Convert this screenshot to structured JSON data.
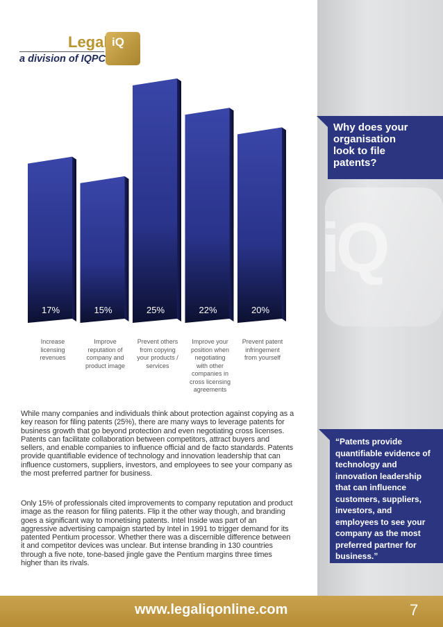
{
  "logo": {
    "brand": "Legal",
    "mark": "iQ",
    "tagline": "a division of IQPC"
  },
  "chart_data": {
    "type": "bar",
    "categories": [
      "Increase licensing revenues",
      "Improve reputation of company and product image",
      "Prevent others from copying your products / services",
      "Improve your position when negotiating with other companies in cross licensing agreements",
      "Prevent patent infringement from yourself"
    ],
    "category_lines": [
      [
        "Increase",
        "licensing",
        "revenues"
      ],
      [
        "Improve",
        "reputation of",
        "company and",
        "product image"
      ],
      [
        "Prevent others",
        "from copying",
        "your products /",
        "services"
      ],
      [
        "Improve your",
        "position when",
        "negotiating",
        "with other",
        "companies in",
        "cross licensing",
        "agreements"
      ],
      [
        "Prevent patent",
        "infringement",
        "from yourself"
      ]
    ],
    "values": [
      17,
      15,
      25,
      22,
      20
    ],
    "value_labels": [
      "17%",
      "15%",
      "25%",
      "22%",
      "20%"
    ],
    "ylim": [
      0,
      25
    ],
    "grid": false
  },
  "sidebar": {
    "watermark": "iQ",
    "callout_question": "Why does your organisation look to file patents?",
    "callout_quote": "“Patents provide quantifiable evidence of technology and innovation leadership that can influence customers, suppliers, investors, and employees to see your company as the most preferred partner for business.”"
  },
  "body": {
    "paragraph_1": "While many companies and individuals think about protection against copying as a key reason for filing patents (25%), there are many ways to leverage patents for business growth that go beyond protection and even negotiating cross licenses. Patents can facilitate collaboration between competitors, attract buyers and sellers, and enable companies to influence official and de facto standards. Patents provide quantifiable evidence of technology and innovation leadership that can influence customers, suppliers, investors, and employees to see your company as the most preferred partner for business.",
    "paragraph_2": "Only 15% of professionals cited improvements to company reputation and product image as the reason for filing patents. Flip it the other way though, and branding goes a significant way to monetising patents. Intel Inside was part of an aggressive advertising campaign started by Intel in 1991 to trigger demand for its patented Pentium processor. Whether there was a discernible difference between it and competitor devices was unclear. But intense branding in 130 countries through a five note, tone-based jingle gave the Pentium margins three times higher than its rivals."
  },
  "footer": {
    "url": "www.legaliqonline.com",
    "page_number": "7"
  },
  "colors": {
    "bar": "#2b3590",
    "callout": "#2b3580",
    "gold": "#b8932e"
  }
}
